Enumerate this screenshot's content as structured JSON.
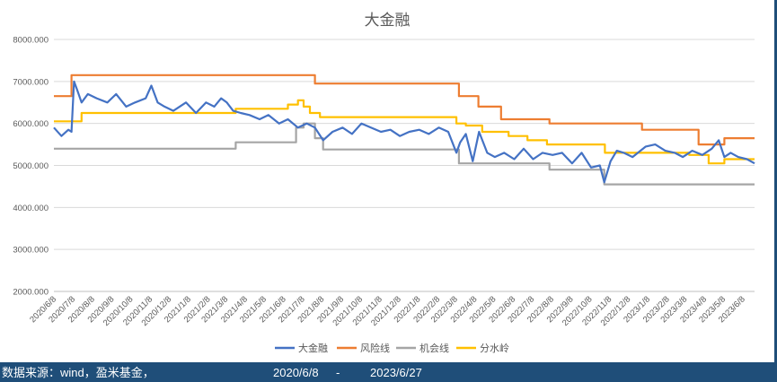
{
  "chart_data": {
    "type": "line",
    "title": "大金融",
    "xlabel": "",
    "ylabel": "",
    "ylim": [
      2000,
      8000
    ],
    "yticks": [
      "2000.000",
      "3000.000",
      "4000.000",
      "5000.000",
      "6000.000",
      "7000.000",
      "8000.000"
    ],
    "x_start": "2020-06-08",
    "x_end": "2023-06-27",
    "xticks": [
      "2020/6/8",
      "2020/7/8",
      "2020/8/8",
      "2020/9/8",
      "2020/10/8",
      "2020/11/8",
      "2020/12/8",
      "2021/1/8",
      "2021/2/8",
      "2021/3/8",
      "2021/4/8",
      "2021/5/8",
      "2021/6/8",
      "2021/7/8",
      "2021/8/8",
      "2021/9/8",
      "2021/10/8",
      "2021/11/8",
      "2021/12/8",
      "2022/1/8",
      "2022/2/8",
      "2022/3/8",
      "2022/4/8",
      "2022/5/8",
      "2022/6/8",
      "2022/7/8",
      "2022/8/8",
      "2022/9/8",
      "2022/10/8",
      "2022/11/8",
      "2022/12/8",
      "2023/1/8",
      "2023/2/8",
      "2023/3/8",
      "2023/4/8",
      "2023/5/8",
      "2023/6/8"
    ],
    "grid": true,
    "legend_position": "bottom",
    "series": [
      {
        "name": "大金融",
        "color": "#4472c4",
        "x": [
          "2020-06-08",
          "2020-06-20",
          "2020-07-01",
          "2020-07-06",
          "2020-07-10",
          "2020-07-15",
          "2020-07-22",
          "2020-08-01",
          "2020-08-15",
          "2020-09-01",
          "2020-09-15",
          "2020-10-01",
          "2020-10-15",
          "2020-11-01",
          "2020-11-10",
          "2020-11-20",
          "2020-12-01",
          "2020-12-15",
          "2021-01-04",
          "2021-01-20",
          "2021-02-05",
          "2021-02-18",
          "2021-03-01",
          "2021-03-10",
          "2021-03-20",
          "2021-04-01",
          "2021-04-15",
          "2021-05-01",
          "2021-05-15",
          "2021-06-01",
          "2021-06-15",
          "2021-07-01",
          "2021-07-15",
          "2021-07-28",
          "2021-08-10",
          "2021-08-25",
          "2021-09-10",
          "2021-09-25",
          "2021-10-10",
          "2021-10-25",
          "2021-11-10",
          "2021-11-25",
          "2021-12-10",
          "2021-12-25",
          "2022-01-10",
          "2022-01-25",
          "2022-02-10",
          "2022-02-25",
          "2022-03-10",
          "2022-03-16",
          "2022-03-25",
          "2022-04-05",
          "2022-04-15",
          "2022-04-28",
          "2022-05-10",
          "2022-05-25",
          "2022-06-10",
          "2022-06-25",
          "2022-07-10",
          "2022-07-25",
          "2022-08-10",
          "2022-08-25",
          "2022-09-10",
          "2022-09-25",
          "2022-10-10",
          "2022-10-24",
          "2022-10-31",
          "2022-11-10",
          "2022-11-20",
          "2022-12-01",
          "2022-12-15",
          "2023-01-05",
          "2023-01-20",
          "2023-02-05",
          "2023-02-20",
          "2023-03-05",
          "2023-03-20",
          "2023-04-05",
          "2023-04-20",
          "2023-05-01",
          "2023-05-10",
          "2023-05-20",
          "2023-06-01",
          "2023-06-15",
          "2023-06-27"
        ],
        "y": [
          5900,
          5700,
          5850,
          5800,
          7000,
          6800,
          6500,
          6700,
          6600,
          6500,
          6700,
          6400,
          6500,
          6600,
          6900,
          6500,
          6400,
          6300,
          6500,
          6250,
          6500,
          6400,
          6600,
          6500,
          6300,
          6250,
          6200,
          6100,
          6200,
          6000,
          6100,
          5900,
          6000,
          5900,
          5600,
          5800,
          5900,
          5750,
          6000,
          5900,
          5800,
          5850,
          5700,
          5800,
          5850,
          5750,
          5900,
          5800,
          5300,
          5550,
          5750,
          5100,
          5800,
          5300,
          5200,
          5300,
          5150,
          5400,
          5150,
          5300,
          5250,
          5300,
          5050,
          5300,
          4950,
          5000,
          4600,
          5100,
          5350,
          5300,
          5200,
          5450,
          5500,
          5350,
          5300,
          5200,
          5350,
          5250,
          5400,
          5600,
          5200,
          5300,
          5200,
          5150,
          5050
        ]
      },
      {
        "name": "风险线",
        "color": "#ed7d31",
        "x": [
          "2020-06-08",
          "2020-07-06",
          "2021-07-28",
          "2021-08-15",
          "2022-03-14",
          "2022-04-14",
          "2022-05-20",
          "2022-08-05",
          "2022-12-30",
          "2023-03-30",
          "2023-04-20",
          "2023-05-10",
          "2023-06-27"
        ],
        "y": [
          6650,
          7150,
          6950,
          6950,
          6650,
          6400,
          6100,
          6000,
          5850,
          5500,
          5500,
          5650,
          5650
        ]
      },
      {
        "name": "机会线",
        "color": "#a5a5a5",
        "x": [
          "2020-06-08",
          "2021-03-24",
          "2021-06-28",
          "2021-07-10",
          "2021-07-28",
          "2021-08-10",
          "2022-03-14",
          "2022-08-05",
          "2022-10-31",
          "2023-06-27"
        ],
        "y": [
          5400,
          5550,
          5900,
          6000,
          5650,
          5380,
          5050,
          4900,
          4550,
          4550
        ]
      },
      {
        "name": "分水岭",
        "color": "#ffc000",
        "x": [
          "2020-06-08",
          "2020-07-06",
          "2020-07-22",
          "2021-03-24",
          "2021-06-15",
          "2021-07-01",
          "2021-07-10",
          "2021-07-20",
          "2021-08-05",
          "2022-03-10",
          "2022-03-25",
          "2022-04-20",
          "2022-06-01",
          "2022-07-01",
          "2022-08-01",
          "2022-11-01",
          "2023-01-10",
          "2023-03-15",
          "2023-04-15",
          "2023-05-10",
          "2023-06-27"
        ],
        "y": [
          6050,
          6050,
          6250,
          6350,
          6450,
          6550,
          6400,
          6250,
          6150,
          6000,
          5950,
          5800,
          5700,
          5600,
          5500,
          5300,
          5300,
          5250,
          5050,
          5150,
          5150
        ]
      }
    ]
  },
  "footer": {
    "source": "数据来源：wind，盈米基金，",
    "start": "2020/6/8",
    "dash": "-",
    "end": "2023/6/27"
  }
}
